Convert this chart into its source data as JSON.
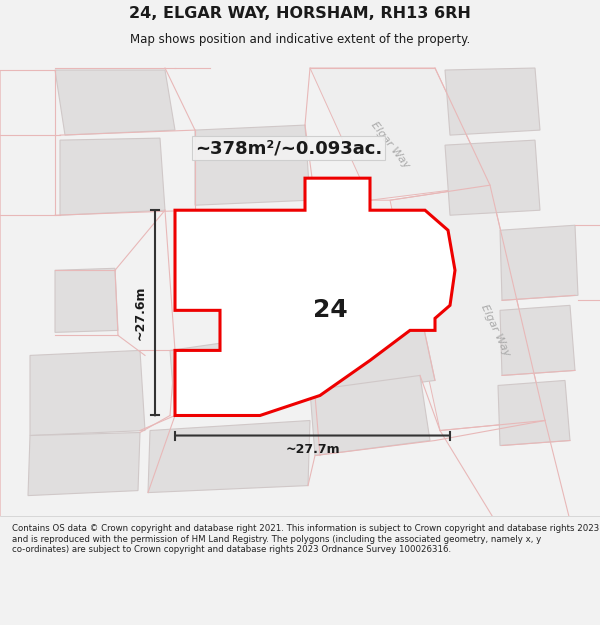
{
  "title": "24, ELGAR WAY, HORSHAM, RH13 6RH",
  "subtitle": "Map shows position and indicative extent of the property.",
  "area_label": "~378m²/~0.093ac.",
  "number_label": "24",
  "dim_h": "~27.6m",
  "dim_w": "~27.7m",
  "road_label_1": "Elgar Way",
  "road_label_2": "Elgar Way",
  "footer": "Contains OS data © Crown copyright and database right 2021. This information is subject to Crown copyright and database rights 2023 and is reproduced with the permission of HM Land Registry. The polygons (including the associated geometry, namely x, y co-ordinates) are subject to Crown copyright and database rights 2023 Ordnance Survey 100026316.",
  "bg_color": "#f2f2f2",
  "map_bg": "#f5f4f4",
  "property_fill": "#ffffff",
  "property_edge": "#ee0000",
  "road_line_color": "#e8b8b8",
  "block_fill": "#e0dede",
  "block_edge": "#d0c8c8",
  "title_color": "#1a1a1a",
  "footer_color": "#222222",
  "footer_bg": "#ffffff"
}
